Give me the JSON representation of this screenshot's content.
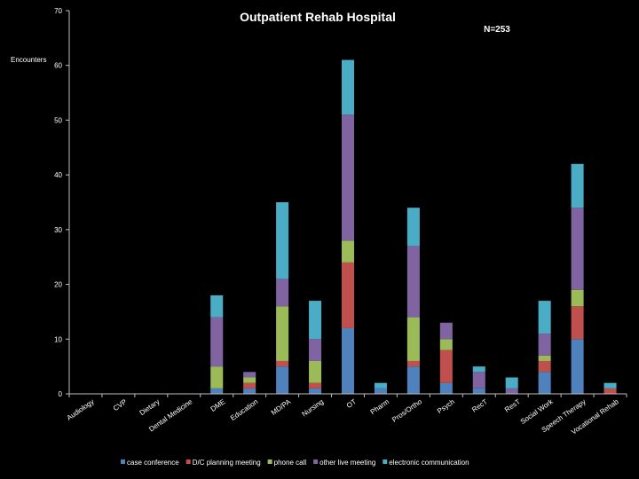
{
  "chart_data": {
    "type": "bar",
    "stacked": true,
    "title": "Outpatient Rehab Hospital",
    "annotation": "N=253",
    "ylabel": "Encounters",
    "xlabel": "",
    "ylim": [
      0,
      70
    ],
    "yticks": [
      0,
      10,
      20,
      30,
      40,
      50,
      60,
      70
    ],
    "grid": false,
    "legend_position": "bottom",
    "categories": [
      "Audiology",
      "CVP",
      "Dietary",
      "Dental Medicine",
      "DME",
      "Education",
      "MD/PA",
      "Nursing",
      "OT",
      "Pharm",
      "Pros/Ortho",
      "Psych",
      "RecT",
      "ResT",
      "Social Work",
      "Speech Therapy",
      "Vocational Rehab"
    ],
    "series": [
      {
        "name": "case conference",
        "color": "#4f81bd",
        "values": [
          0,
          0,
          0,
          0,
          1,
          1,
          5,
          1,
          12,
          1,
          5,
          2,
          1,
          0,
          4,
          10,
          0
        ]
      },
      {
        "name": "D/C planning meeting",
        "color": "#c0504d",
        "values": [
          0,
          0,
          0,
          0,
          0,
          1,
          1,
          1,
          12,
          0,
          1,
          6,
          0,
          0,
          2,
          6,
          1
        ]
      },
      {
        "name": "phone call",
        "color": "#9bbb59",
        "values": [
          0,
          0,
          0,
          0,
          4,
          1,
          10,
          4,
          4,
          0,
          8,
          2,
          0,
          0,
          1,
          3,
          0
        ]
      },
      {
        "name": "other live meeting",
        "color": "#8064a2",
        "values": [
          0,
          0,
          0,
          0,
          9,
          1,
          5,
          4,
          23,
          0,
          13,
          3,
          3,
          1,
          4,
          15,
          0
        ]
      },
      {
        "name": "electronic communication",
        "color": "#4bacc6",
        "values": [
          0,
          0,
          0,
          0,
          4,
          0,
          14,
          7,
          10,
          1,
          7,
          0,
          1,
          2,
          6,
          8,
          1
        ]
      }
    ]
  }
}
